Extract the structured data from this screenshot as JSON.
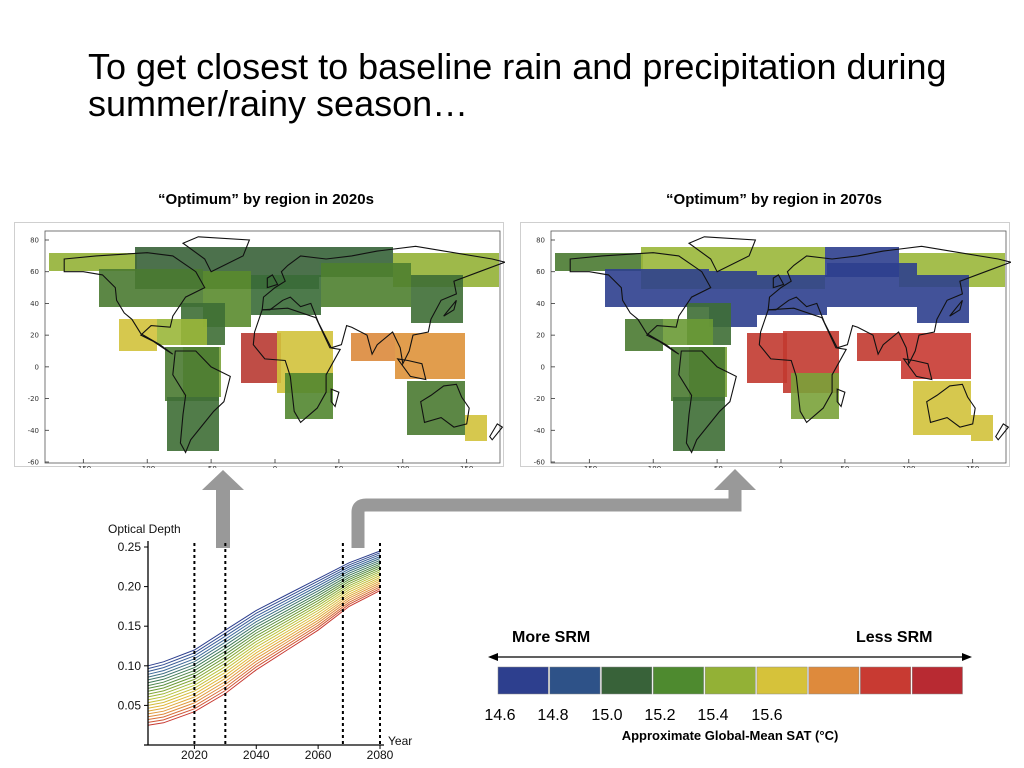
{
  "slide": {
    "title": "To get closest to baseline rain and precipitation during summer/rainy season…"
  },
  "maps": {
    "left": {
      "caption": "“Optimum” by region in 2020s",
      "regions": [
        {
          "color": "#93b136"
        },
        {
          "color": "#386239"
        },
        {
          "color": "#366339"
        },
        {
          "color": "#93b136"
        },
        {
          "color": "#4a7a31"
        },
        {
          "color": "#3a6b37"
        },
        {
          "color": "#4e7f2f"
        },
        {
          "color": "#3e6e35"
        },
        {
          "color": "#5a8b2d"
        },
        {
          "color": "#3e6e35"
        },
        {
          "color": "#d2c23b"
        },
        {
          "color": "#9ab73a"
        },
        {
          "color": "#b83a32"
        },
        {
          "color": "#d2c23b"
        },
        {
          "color": "#7aa23a"
        },
        {
          "color": "#dc8a3c"
        },
        {
          "color": "#de923a"
        },
        {
          "color": "#4a7a31"
        },
        {
          "color": "#3e6e35"
        },
        {
          "color": "#528630"
        },
        {
          "color": "#4a7a31"
        },
        {
          "color": "#d2c23b"
        }
      ]
    },
    "right": {
      "caption": "“Optimum” by region in 2070s",
      "regions": [
        {
          "color": "#4a7a31"
        },
        {
          "color": "#9ab73a"
        },
        {
          "color": "#2d3f8e"
        },
        {
          "color": "#9ab73a"
        },
        {
          "color": "#2d3f8e"
        },
        {
          "color": "#2d3f8e"
        },
        {
          "color": "#2d3f8e"
        },
        {
          "color": "#2d3f8e"
        },
        {
          "color": "#2d3f8e"
        },
        {
          "color": "#3e6e35"
        },
        {
          "color": "#4a7a31"
        },
        {
          "color": "#6a9a35"
        },
        {
          "color": "#c23a30"
        },
        {
          "color": "#c23a30"
        },
        {
          "color": "#7aa23a"
        },
        {
          "color": "#c23a30"
        },
        {
          "color": "#c83a32"
        },
        {
          "color": "#4a7a31"
        },
        {
          "color": "#3e6e35"
        },
        {
          "color": "#7aa23a"
        },
        {
          "color": "#d2c23b"
        },
        {
          "color": "#d2c23b"
        }
      ]
    },
    "x_ticks": [
      "-150",
      "-100",
      "-50",
      "0",
      "50",
      "100",
      "150"
    ],
    "y_ticks": [
      "80",
      "60",
      "40",
      "20",
      "0",
      "-20",
      "-40",
      "-60"
    ]
  },
  "chart_data": {
    "type": "line",
    "title": "",
    "ylabel": "Optical Depth",
    "xlabel": "Year",
    "xlim": [
      2005,
      2080
    ],
    "ylim": [
      0,
      0.25
    ],
    "x_ticks": [
      "2020",
      "2040",
      "2060",
      "2080"
    ],
    "y_ticks": [
      "0.05",
      "0.10",
      "0.15",
      "0.20",
      "0.25"
    ],
    "x": [
      2005,
      2010,
      2020,
      2030,
      2040,
      2050,
      2060,
      2070,
      2080
    ],
    "band": {
      "top_series": [
        0.1,
        0.105,
        0.12,
        0.145,
        0.17,
        0.19,
        0.21,
        0.23,
        0.245
      ],
      "bottom_series": [
        0.025,
        0.028,
        0.042,
        0.065,
        0.095,
        0.12,
        0.145,
        0.175,
        0.195
      ],
      "line_count": 22,
      "colors_top_to_bottom": [
        "#2d3f8e",
        "#3d6a9a",
        "#3e7a55",
        "#6a9a35",
        "#b8c23a",
        "#e0b83a",
        "#de8a3c",
        "#c83a32"
      ]
    },
    "vertical_markers": [
      2020,
      2030,
      2068,
      2080
    ]
  },
  "scale": {
    "more_label": "More SRM",
    "less_label": "Less SRM",
    "colors": [
      "#2d3f8e",
      "#2e5288",
      "#386239",
      "#4e8a2f",
      "#93b136",
      "#d6c23a",
      "#de8a3c",
      "#c83a32",
      "#b82a32"
    ],
    "ticks": [
      "14.6",
      "14.8",
      "15.0",
      "15.2",
      "15.4",
      "15.6"
    ],
    "caption": "Approximate Global-Mean SAT (°C)"
  },
  "arrows": {
    "color": "#999999"
  }
}
